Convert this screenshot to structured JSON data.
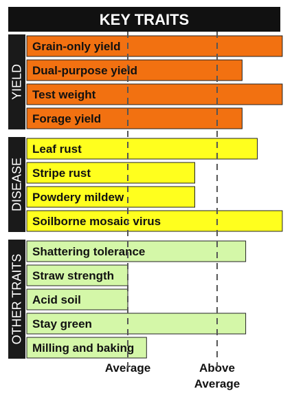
{
  "chart_data": {
    "type": "bar",
    "orientation": "horizontal",
    "title": "KEY TRAITS",
    "x_ticks": [
      {
        "label_lines": [
          "Average"
        ],
        "value": 1
      },
      {
        "label_lines": [
          "Above",
          "Average"
        ],
        "value": 2
      }
    ],
    "xlim": [
      0,
      2.73
    ],
    "grid": "dashed reference lines at tick values",
    "groups": [
      {
        "name": "YIELD",
        "color": "#f27111",
        "categories": [
          "Grain-only yield",
          "Dual-purpose yield",
          "Test weight",
          "Forage yield"
        ],
        "values": [
          2.73,
          2.28,
          2.73,
          2.28
        ]
      },
      {
        "name": "DISEASE",
        "color": "#ffff1e",
        "categories": [
          "Leaf rust",
          "Stripe rust",
          "Powdery mildew",
          "Soilborne mosaic virus"
        ],
        "values": [
          2.45,
          1.75,
          1.75,
          2.73
        ]
      },
      {
        "name": "OTHER TRAITS",
        "color": "#d4f7a8",
        "categories": [
          "Shattering tolerance",
          "Straw strength",
          "Acid soil",
          "Stay green",
          "Milling and baking"
        ],
        "values": [
          2.32,
          1.0,
          1.0,
          2.32,
          1.21
        ]
      }
    ]
  }
}
